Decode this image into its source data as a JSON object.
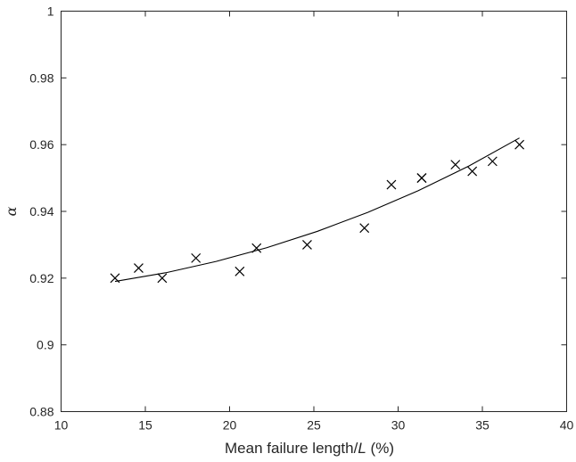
{
  "chart_data": {
    "type": "scatter",
    "xlabel_parts": {
      "pre": "Mean failure length/",
      "var": "L",
      "post": " (%)"
    },
    "ylabel": "α",
    "xlim": [
      10,
      40
    ],
    "ylim": [
      0.88,
      1.0
    ],
    "xticks": [
      10,
      15,
      20,
      25,
      30,
      35,
      40
    ],
    "yticks": [
      0.88,
      0.9,
      0.92,
      0.94,
      0.96,
      0.98,
      1.0
    ],
    "xtick_labels": [
      "10",
      "15",
      "20",
      "25",
      "30",
      "35",
      "40"
    ],
    "ytick_labels": [
      "0.88",
      "0.9",
      "0.92",
      "0.94",
      "0.96",
      "0.98",
      "1"
    ],
    "grid": false,
    "points": [
      {
        "x": 13.2,
        "y": 0.92
      },
      {
        "x": 14.6,
        "y": 0.923
      },
      {
        "x": 16.0,
        "y": 0.92
      },
      {
        "x": 18.0,
        "y": 0.926
      },
      {
        "x": 20.6,
        "y": 0.922
      },
      {
        "x": 21.6,
        "y": 0.929
      },
      {
        "x": 24.6,
        "y": 0.93
      },
      {
        "x": 28.0,
        "y": 0.935
      },
      {
        "x": 29.6,
        "y": 0.948
      },
      {
        "x": 31.4,
        "y": 0.95
      },
      {
        "x": 31.4,
        "y": 0.95
      },
      {
        "x": 33.4,
        "y": 0.954
      },
      {
        "x": 34.4,
        "y": 0.952
      },
      {
        "x": 35.6,
        "y": 0.955
      },
      {
        "x": 37.2,
        "y": 0.96
      }
    ],
    "fit_curve": {
      "x": [
        13.2,
        16.2,
        19.2,
        22.2,
        25.2,
        28.2,
        31.2,
        34.2,
        37.2
      ],
      "y": [
        0.919,
        0.9216,
        0.925,
        0.9291,
        0.934,
        0.9397,
        0.9462,
        0.9536,
        0.962
      ]
    },
    "marker": "x",
    "line_color": "#000000"
  }
}
